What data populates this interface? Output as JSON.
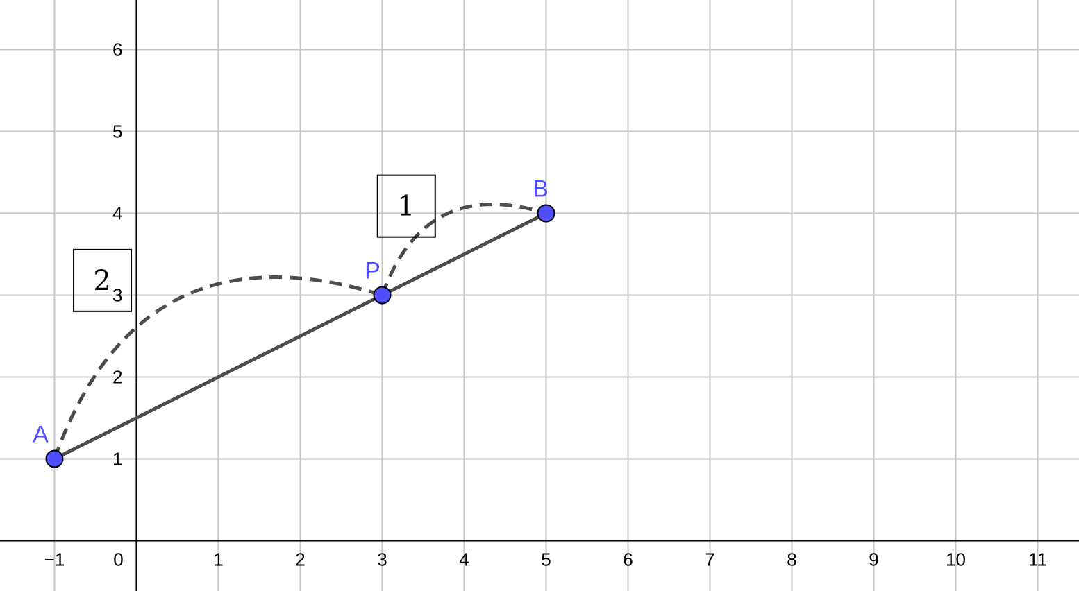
{
  "axes": {
    "x_range": [
      -2,
      11.5
    ],
    "y_range": [
      -0.6,
      6.6
    ],
    "x_ticks": [
      {
        "value": -1,
        "label": "−1"
      },
      {
        "value": 0,
        "label": "0"
      },
      {
        "value": 1,
        "label": "1"
      },
      {
        "value": 2,
        "label": "2"
      },
      {
        "value": 3,
        "label": "3"
      },
      {
        "value": 4,
        "label": "4"
      },
      {
        "value": 5,
        "label": "5"
      },
      {
        "value": 6,
        "label": "6"
      },
      {
        "value": 7,
        "label": "7"
      },
      {
        "value": 8,
        "label": "8"
      },
      {
        "value": 9,
        "label": "9"
      },
      {
        "value": 10,
        "label": "10"
      },
      {
        "value": 11,
        "label": "11"
      }
    ],
    "y_ticks": [
      {
        "value": 1,
        "label": "1"
      },
      {
        "value": 2,
        "label": "2"
      },
      {
        "value": 3,
        "label": "3"
      },
      {
        "value": 4,
        "label": "4"
      },
      {
        "value": 5,
        "label": "5"
      },
      {
        "value": 6,
        "label": "6"
      }
    ],
    "grid": true
  },
  "points": [
    {
      "label": "A",
      "x": -1,
      "y": 1
    },
    {
      "label": "P",
      "x": 3,
      "y": 3
    },
    {
      "label": "B",
      "x": 5,
      "y": 4
    }
  ],
  "segment": {
    "from": "A",
    "to": "B"
  },
  "arcs": [
    {
      "from": "A",
      "to": "P",
      "label": "2"
    },
    {
      "from": "P",
      "to": "B",
      "label": "1"
    }
  ],
  "colors": {
    "point_fill": "#4f4fff",
    "point_stroke": "#000000",
    "point_label": "#4f4fff",
    "line": "#4d4d4d",
    "grid": "#c4c4c4",
    "axis": "#000000"
  }
}
